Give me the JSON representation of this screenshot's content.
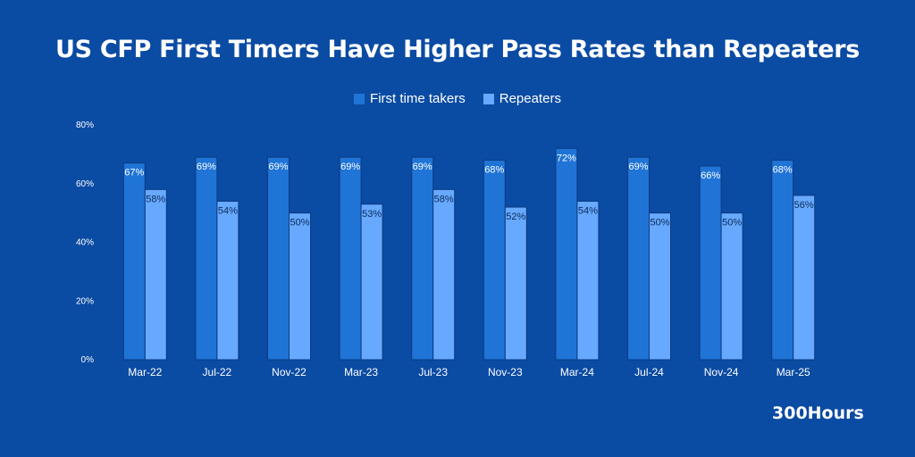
{
  "colors": {
    "background": "#0a4ba3",
    "series_a": "#1f74d6",
    "series_b": "#66a9ff",
    "bar_outline": "#0b3b80"
  },
  "chart_data": {
    "type": "bar",
    "title": "US CFP First Timers Have Higher Pass Rates than Repeaters",
    "xlabel": "",
    "ylabel": "",
    "ylim": [
      0,
      80
    ],
    "yticks": [
      "0%",
      "20%",
      "40%",
      "60%",
      "80%"
    ],
    "ytick_values": [
      0,
      20,
      40,
      60,
      80
    ],
    "categories": [
      "Mar-22",
      "Jul-22",
      "Nov-22",
      "Mar-23",
      "Jul-23",
      "Nov-23",
      "Mar-24",
      "Jul-24",
      "Nov-24",
      "Mar-25"
    ],
    "series": [
      {
        "name": "First time takers",
        "values": [
          67,
          69,
          69,
          69,
          69,
          68,
          72,
          69,
          66,
          68
        ],
        "labels": [
          "67%",
          "69%",
          "69%",
          "69%",
          "69%",
          "68%",
          "72%",
          "69%",
          "66%",
          "68%"
        ]
      },
      {
        "name": "Repeaters",
        "values": [
          58,
          54,
          50,
          53,
          58,
          52,
          54,
          50,
          50,
          56
        ],
        "labels": [
          "58%",
          "54%",
          "50%",
          "53%",
          "58%",
          "52%",
          "54%",
          "50%",
          "50%",
          "56%"
        ]
      }
    ],
    "legend": "top-center",
    "grid": false
  },
  "brand": "300Hours"
}
